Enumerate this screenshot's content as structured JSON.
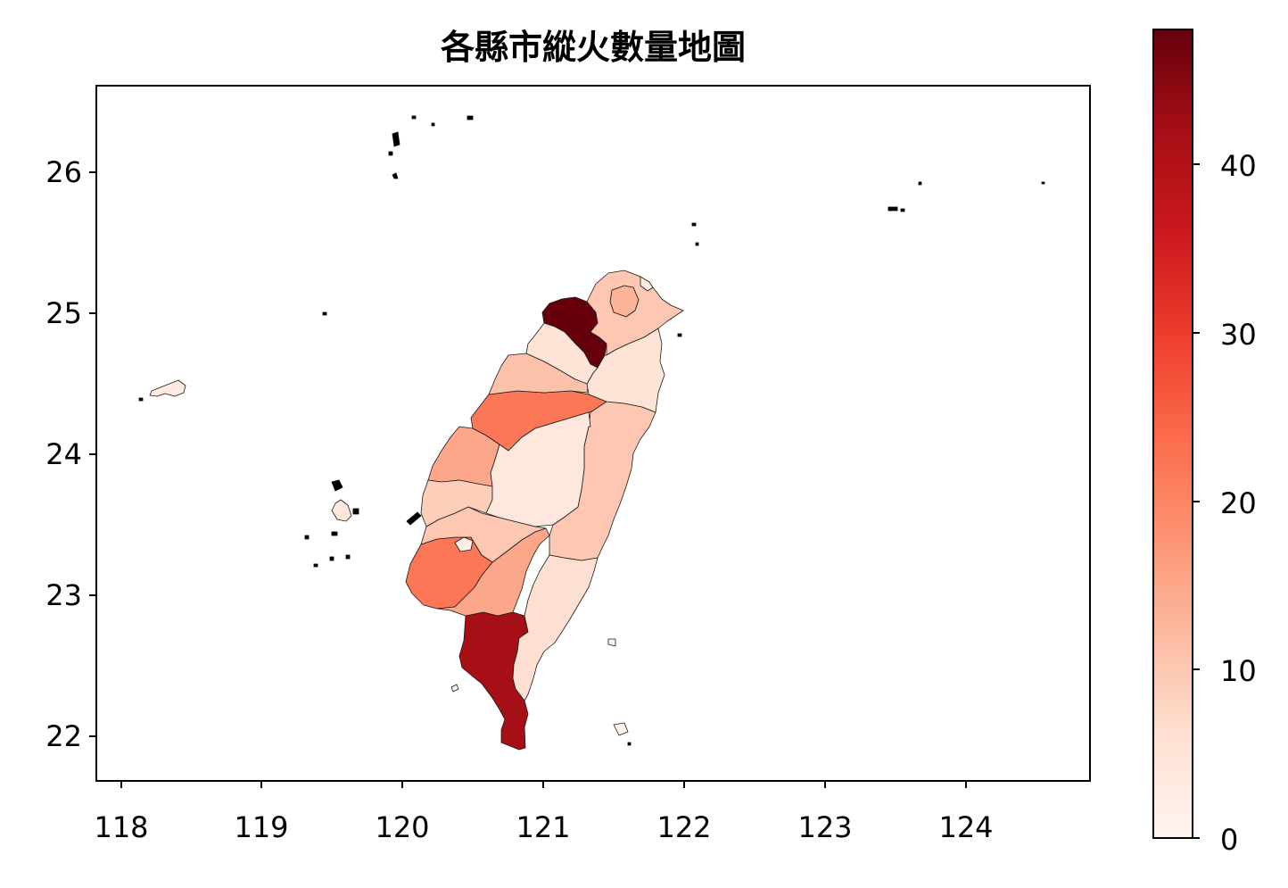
{
  "chart_data": {
    "type": "choropleth",
    "title": "各縣市縱火數量地圖",
    "colormap": "Reds",
    "xlim": [
      117.8,
      124.85
    ],
    "ylim": [
      21.68,
      26.6
    ],
    "x_ticks": [
      "118",
      "119",
      "120",
      "121",
      "122",
      "123",
      "124"
    ],
    "y_ticks": [
      "22",
      "23",
      "24",
      "25",
      "26"
    ],
    "colorbar": {
      "range": [
        0,
        48
      ],
      "ticks": [
        "0",
        "10",
        "20",
        "30",
        "40"
      ]
    },
    "regions": [
      {
        "value": 48
      },
      {
        "value": 42
      },
      {
        "value": 22
      },
      {
        "value": 22
      },
      {
        "value": 15
      },
      {
        "value": 15
      },
      {
        "value": 13
      },
      {
        "value": 11
      },
      {
        "value": 10
      },
      {
        "value": 10
      },
      {
        "value": 10
      },
      {
        "value": 9
      },
      {
        "value": 6
      },
      {
        "value": 5
      },
      {
        "value": 5
      },
      {
        "value": 4
      },
      {
        "value": 4
      },
      {
        "value": 3
      },
      {
        "value": 3
      },
      {
        "value": 2
      },
      {
        "value": 1
      },
      {
        "value": 1
      }
    ]
  },
  "colors": {
    "stops": [
      "#fff5f0",
      "#fee0d2",
      "#fcbba1",
      "#fc9272",
      "#fb6a4a",
      "#ef3b2c",
      "#cb181d",
      "#a50f15",
      "#67000d"
    ]
  }
}
